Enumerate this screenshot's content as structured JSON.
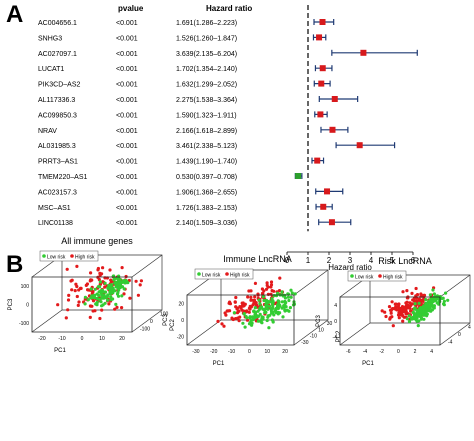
{
  "panel_a": {
    "letter": "A",
    "header_pvalue": "pvalue",
    "header_hr": "Hazard ratio",
    "xlabel": "Hazard ratio",
    "ticks": [
      "0",
      "1",
      "2",
      "3",
      "4",
      "5",
      "6"
    ],
    "rows": [
      {
        "gene": "AC004656.1",
        "pvalue": "<0.001",
        "hr_text": "1.691(1.286–2.223)"
      },
      {
        "gene": "SNHG3",
        "pvalue": "<0.001",
        "hr_text": "1.526(1.260–1.847)"
      },
      {
        "gene": "AC027097.1",
        "pvalue": "<0.001",
        "hr_text": "3.639(2.135–6.204)"
      },
      {
        "gene": "LUCAT1",
        "pvalue": "<0.001",
        "hr_text": "1.702(1.354–2.140)"
      },
      {
        "gene": "PIK3CD–AS2",
        "pvalue": "<0.001",
        "hr_text": "1.632(1.299–2.052)"
      },
      {
        "gene": "AL117336.3",
        "pvalue": "<0.001",
        "hr_text": "2.275(1.538–3.364)"
      },
      {
        "gene": "AC099850.3",
        "pvalue": "<0.001",
        "hr_text": "1.590(1.323–1.911)"
      },
      {
        "gene": "NRAV",
        "pvalue": "<0.001",
        "hr_text": "2.166(1.618–2.899)"
      },
      {
        "gene": "AL031985.3",
        "pvalue": "<0.001",
        "hr_text": "3.461(2.338–5.123)"
      },
      {
        "gene": "PRRT3–AS1",
        "pvalue": "<0.001",
        "hr_text": "1.439(1.190–1.740)"
      },
      {
        "gene": "TMEM220–AS1",
        "pvalue": "<0.001",
        "hr_text": "0.530(0.397–0.708)"
      },
      {
        "gene": "AC023157.3",
        "pvalue": "<0.001",
        "hr_text": "1.906(1.368–2.655)"
      },
      {
        "gene": "MSC–AS1",
        "pvalue": "<0.001",
        "hr_text": "1.726(1.383–2.153)"
      },
      {
        "gene": "LINC01138",
        "pvalue": "<0.001",
        "hr_text": "2.140(1.509–3.036)"
      }
    ]
  },
  "chart_data": [
    {
      "type": "forest",
      "xlabel": "Hazard ratio",
      "xlim": [
        0,
        6
      ],
      "reference_line": 1,
      "categories": [
        "AC004656.1",
        "SNHG3",
        "AC027097.1",
        "LUCAT1",
        "PIK3CD–AS2",
        "AL117336.3",
        "AC099850.3",
        "NRAV",
        "AL031985.3",
        "PRRT3–AS1",
        "TMEM220–AS1",
        "AC023157.3",
        "MSC–AS1",
        "LINC01138"
      ],
      "hr": [
        1.691,
        1.526,
        3.639,
        1.702,
        1.632,
        2.275,
        1.59,
        2.166,
        3.461,
        1.439,
        0.53,
        1.906,
        1.726,
        2.14
      ],
      "lower": [
        1.286,
        1.26,
        2.135,
        1.354,
        1.299,
        1.538,
        1.323,
        1.618,
        2.338,
        1.19,
        0.397,
        1.368,
        1.383,
        1.509
      ],
      "upper": [
        2.223,
        1.847,
        6.204,
        2.14,
        2.052,
        3.364,
        1.911,
        2.899,
        5.123,
        1.74,
        0.708,
        2.655,
        2.153,
        3.036
      ],
      "colors": {
        "risk": "#d7191c",
        "protective": "#2ca02c",
        "ci": "#1f3a73"
      }
    },
    {
      "type": "scatter",
      "title": "All immune genes",
      "xlabel": "PC1",
      "ylabel": "PC2",
      "zlabel": "PC3",
      "legend": "top-left",
      "series": [
        {
          "name": "Low risk",
          "color": "#33cc33"
        },
        {
          "name": "High risk",
          "color": "#e31a1c"
        }
      ]
    },
    {
      "type": "scatter",
      "title": "Immune LncRNA",
      "xlabel": "PC1",
      "ylabel": "PC2",
      "zlabel": "PC3",
      "legend": "top-left",
      "series": [
        {
          "name": "Low risk",
          "color": "#33cc33"
        },
        {
          "name": "High risk",
          "color": "#e31a1c"
        }
      ]
    },
    {
      "type": "scatter",
      "title": "Risk LncRNA",
      "xlabel": "PC1",
      "ylabel": "PC2",
      "zlabel": "PC3",
      "legend": "top-left",
      "series": [
        {
          "name": "Low risk",
          "color": "#33cc33"
        },
        {
          "name": "High risk",
          "color": "#e31a1c"
        }
      ]
    }
  ],
  "panel_b": {
    "letter": "B",
    "plots": [
      {
        "title": "All immune genes",
        "x_ticks": [
          "-20",
          "-10",
          "0",
          "10",
          "20"
        ],
        "y_ticks": [
          "-100",
          "0",
          "100"
        ],
        "z_ticks": [
          "-100",
          "0",
          "100"
        ]
      },
      {
        "title": "Immune LncRNA",
        "x_ticks": [
          "-30",
          "-20",
          "-10",
          "0",
          "10",
          "20"
        ],
        "y_ticks": [
          "-30",
          "-10",
          "10",
          "30"
        ],
        "z_ticks": [
          "-20",
          "0",
          "20"
        ]
      },
      {
        "title": "Risk LncRNA",
        "x_ticks": [
          "-6",
          "-4",
          "-2",
          "0",
          "2",
          "4"
        ],
        "y_ticks": [
          "-4",
          "0",
          "4"
        ],
        "z_ticks": [
          "-4",
          "0",
          "4"
        ]
      }
    ]
  }
}
